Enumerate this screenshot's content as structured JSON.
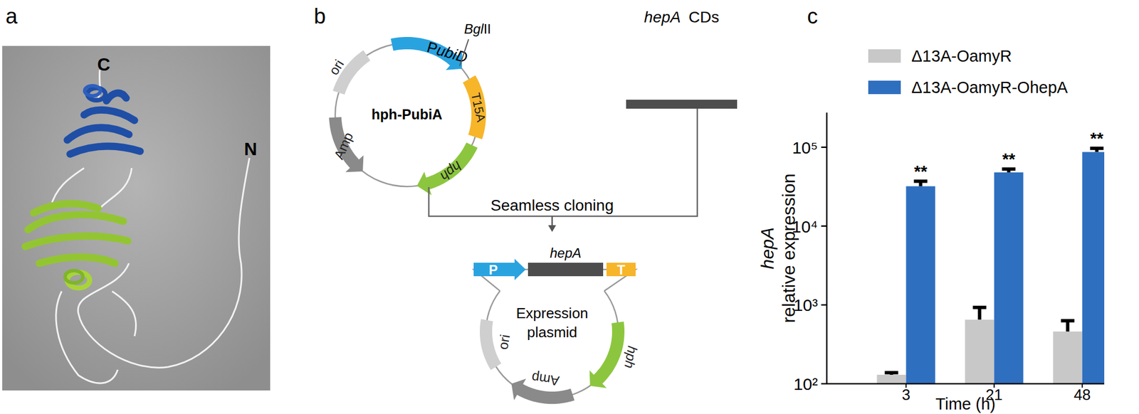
{
  "panels": {
    "a": {
      "label": "a",
      "terminus_labels": [
        "C",
        "N"
      ]
    },
    "b": {
      "label": "b",
      "vector": {
        "name": "hph-PubiA",
        "promoter": [
          {
            "text": "P",
            "italic": false
          },
          {
            "text": "ubiD",
            "italic": true
          }
        ],
        "site": [
          {
            "text": "Bgl",
            "italic": true
          },
          {
            "text": "II",
            "italic": false
          }
        ],
        "terminator": "T15A",
        "marker": "hph",
        "resistance": "Amp",
        "origin": "ori"
      },
      "insert": [
        {
          "text": "hepA",
          "italic": true
        },
        {
          "text": "CDs",
          "italic": false
        }
      ],
      "step": "Seamless cloning",
      "product": {
        "name": [
          "Expression",
          "plasmid"
        ],
        "promoter": "P",
        "gene": "hepA",
        "terminator": "T",
        "marker": "hph",
        "resistance": "Amp",
        "origin": "ori"
      }
    },
    "c": {
      "label": "c"
    }
  },
  "chart_data": {
    "type": "bar",
    "x_label": "Time (h)",
    "y_label": [
      "hepA",
      "relative expression"
    ],
    "categories": [
      "3",
      "21",
      "48"
    ],
    "series": [
      {
        "name": "Δ13A-OamyR",
        "color": "#c8c8c8",
        "values": [
          130,
          650,
          460
        ],
        "errors": [
          8,
          280,
          170
        ]
      },
      {
        "name": "Δ13A-OamyR-OhepA",
        "color": "#2f6fbf",
        "values": [
          32000,
          48000,
          87000
        ],
        "errors": [
          5000,
          5000,
          10000
        ],
        "significance": [
          "**",
          "**",
          "**"
        ]
      }
    ],
    "log": "y",
    "ylim": [
      100,
      275000
    ],
    "yticks": [
      {
        "value": 100,
        "label": "10²"
      },
      {
        "value": 1000,
        "label": "10³"
      },
      {
        "value": 10000,
        "label": "10⁴"
      },
      {
        "value": 100000,
        "label": "10⁵"
      }
    ],
    "grid": false,
    "legend": "top"
  }
}
